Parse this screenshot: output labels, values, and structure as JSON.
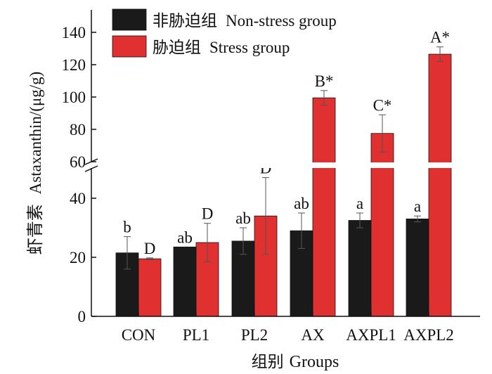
{
  "chart_data": {
    "type": "bar",
    "xlabel_cn": "组别",
    "xlabel_en": "Groups",
    "ylabel_cn": "虾青素",
    "ylabel_en": "Astaxanthin/(μg/g)",
    "categories": [
      "CON",
      "PL1",
      "PL2",
      "AX",
      "AXPL1",
      "AXPL2"
    ],
    "series": [
      {
        "name_cn": "非胁迫组",
        "name_en": "Non-stress group",
        "color": "#1a1a1a",
        "values": [
          21.5,
          23.5,
          25.5,
          29,
          32.5,
          33
        ],
        "errors": [
          5.5,
          0,
          4.5,
          6,
          2.5,
          1
        ],
        "labels": [
          "b",
          "ab",
          "ab",
          "ab",
          "a",
          "a"
        ]
      },
      {
        "name_cn": "胁迫组",
        "name_en": "Stress group",
        "color": "#e03030",
        "values": [
          19.5,
          25,
          34,
          99.5,
          77.5,
          126.5
        ],
        "errors": [
          0.3,
          6.5,
          13,
          4.5,
          11.5,
          4.5
        ],
        "labels": [
          "D",
          "D",
          "D",
          "B*",
          "C*",
          "A*"
        ]
      }
    ],
    "y_lower": {
      "range": [
        0,
        50
      ],
      "ticks": [
        0,
        20,
        40
      ]
    },
    "y_upper": {
      "range": [
        60,
        140
      ],
      "ticks": [
        60,
        80,
        100,
        120,
        140
      ]
    },
    "axis_break": true,
    "legend_position": "top-left",
    "grid": false
  }
}
